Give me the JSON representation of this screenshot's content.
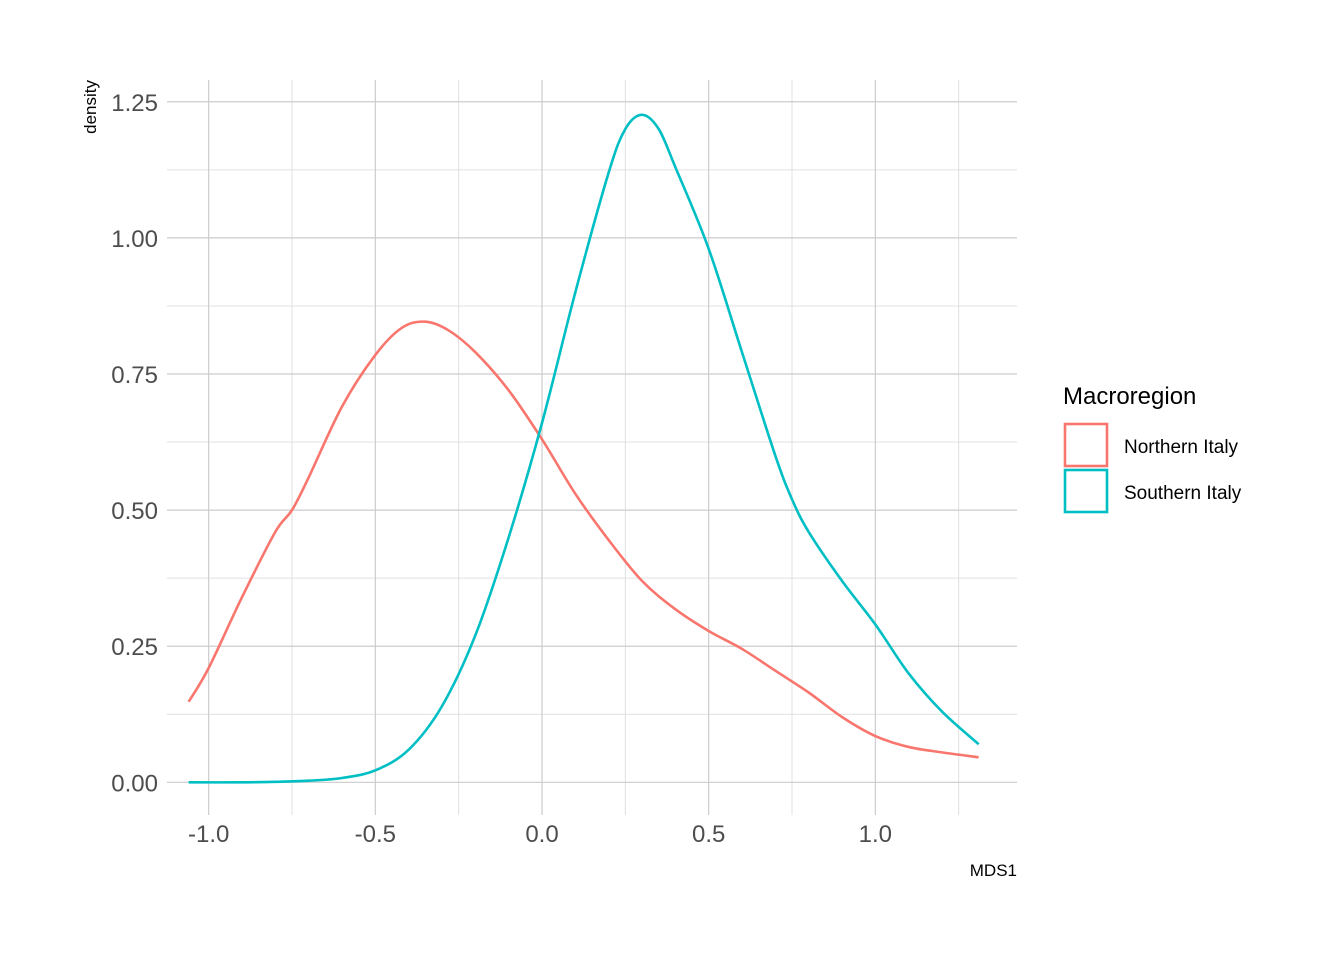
{
  "chart_data": {
    "type": "line",
    "subtype": "density",
    "xlabel": "MDS1",
    "ylabel": "density",
    "xlim": [
      -1.125,
      1.425
    ],
    "ylim": [
      -0.06,
      1.29
    ],
    "x_ticks": [
      -1.0,
      -0.5,
      0.0,
      0.5,
      1.0
    ],
    "x_tick_labels": [
      "-1.0",
      "-0.5",
      "0.0",
      "0.5",
      "1.0"
    ],
    "y_ticks": [
      0.0,
      0.25,
      0.5,
      0.75,
      1.0,
      1.25
    ],
    "y_tick_labels": [
      "0.00",
      "0.25",
      "0.50",
      "0.75",
      "1.00",
      "1.25"
    ],
    "grid": true,
    "legend": {
      "title": "Macroregion",
      "position": "right"
    },
    "series": [
      {
        "name": "Northern Italy",
        "color": "#F8766D",
        "x": [
          -1.06,
          -1.0,
          -0.9,
          -0.8,
          -0.75,
          -0.7,
          -0.6,
          -0.5,
          -0.42,
          -0.35,
          -0.28,
          -0.2,
          -0.1,
          0.0,
          0.1,
          0.2,
          0.3,
          0.4,
          0.5,
          0.6,
          0.7,
          0.8,
          0.9,
          1.0,
          1.1,
          1.2,
          1.31
        ],
        "y": [
          0.148,
          0.21,
          0.34,
          0.46,
          0.5,
          0.56,
          0.69,
          0.785,
          0.835,
          0.846,
          0.83,
          0.79,
          0.72,
          0.63,
          0.53,
          0.445,
          0.37,
          0.318,
          0.278,
          0.245,
          0.205,
          0.165,
          0.12,
          0.085,
          0.065,
          0.055,
          0.046
        ]
      },
      {
        "name": "Southern Italy",
        "color": "#00BFC4",
        "x": [
          -1.06,
          -0.9,
          -0.8,
          -0.7,
          -0.6,
          -0.5,
          -0.4,
          -0.3,
          -0.2,
          -0.1,
          0.0,
          0.1,
          0.2,
          0.25,
          0.3,
          0.35,
          0.4,
          0.5,
          0.6,
          0.7,
          0.75,
          0.8,
          0.9,
          1.0,
          1.1,
          1.2,
          1.31
        ],
        "y": [
          0.0,
          0.0,
          0.001,
          0.003,
          0.008,
          0.022,
          0.06,
          0.14,
          0.27,
          0.45,
          0.66,
          0.9,
          1.12,
          1.2,
          1.226,
          1.2,
          1.13,
          0.98,
          0.79,
          0.6,
          0.52,
          0.46,
          0.37,
          0.29,
          0.2,
          0.13,
          0.07
        ]
      }
    ]
  }
}
